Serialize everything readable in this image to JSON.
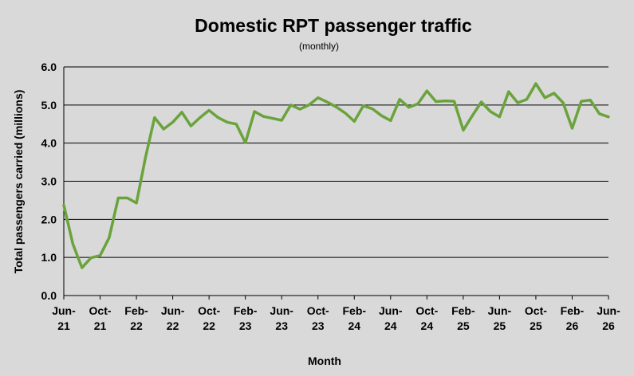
{
  "chart_data": {
    "type": "line",
    "title": "Domestic RPT passenger traffic",
    "subtitle": "(monthly)",
    "xlabel": "Month",
    "ylabel": "Total passengers carried (millions)",
    "ylim": [
      0,
      6
    ],
    "yticks": [
      "0.0",
      "1.0",
      "2.0",
      "3.0",
      "4.0",
      "5.0",
      "6.0"
    ],
    "xticks": [
      [
        "Jun-",
        "21"
      ],
      [
        "Oct-",
        "21"
      ],
      [
        "Feb-",
        "22"
      ],
      [
        "Jun-",
        "22"
      ],
      [
        "Oct-",
        "22"
      ],
      [
        "Feb-",
        "23"
      ],
      [
        "Jun-",
        "23"
      ],
      [
        "Oct-",
        "23"
      ],
      [
        "Feb-",
        "24"
      ],
      [
        "Jun-",
        "24"
      ],
      [
        "Oct-",
        "24"
      ],
      [
        "Feb-",
        "25"
      ],
      [
        "Jun-",
        "25"
      ],
      [
        "Oct-",
        "25"
      ],
      [
        "Feb-",
        "26"
      ],
      [
        "Jun-",
        "26"
      ]
    ],
    "grid": true,
    "line_color": "#6aa33c",
    "series": [
      {
        "x": [
          "Jun-21",
          "Jul-21",
          "Aug-21",
          "Sep-21",
          "Oct-21",
          "Nov-21",
          "Dec-21",
          "Jan-22",
          "Feb-22",
          "Mar-22",
          "Apr-22",
          "May-22",
          "Jun-22",
          "Jul-22",
          "Aug-22",
          "Sep-22",
          "Oct-22",
          "Nov-22",
          "Dec-22",
          "Jan-23",
          "Feb-23",
          "Mar-23",
          "Apr-23",
          "May-23",
          "Jun-23",
          "Jul-23",
          "Aug-23",
          "Sep-23",
          "Oct-23",
          "Nov-23",
          "Dec-23",
          "Jan-24",
          "Feb-24",
          "Mar-24",
          "Apr-24",
          "May-24",
          "Jun-24",
          "Jul-24",
          "Aug-24",
          "Sep-24",
          "Oct-24",
          "Nov-24",
          "Dec-24",
          "Jan-25",
          "Feb-25",
          "Mar-25",
          "Apr-25",
          "May-25",
          "Jun-25",
          "Jul-25",
          "Aug-25",
          "Sep-25",
          "Oct-25",
          "Nov-25",
          "Dec-25",
          "Jan-26",
          "Feb-26",
          "Mar-26",
          "Apr-26",
          "May-26",
          "Jun-26"
        ],
        "values": [
          2.37,
          1.35,
          0.73,
          0.99,
          1.05,
          1.52,
          2.56,
          2.56,
          2.43,
          3.62,
          4.67,
          4.37,
          4.55,
          4.81,
          4.45,
          4.67,
          4.86,
          4.67,
          4.55,
          4.5,
          4.01,
          4.83,
          4.7,
          4.65,
          4.6,
          5.0,
          4.89,
          5.0,
          5.19,
          5.08,
          4.95,
          4.79,
          4.57,
          4.98,
          4.9,
          4.72,
          4.59,
          5.15,
          4.94,
          5.03,
          5.37,
          5.09,
          5.11,
          5.1,
          4.34,
          4.72,
          5.08,
          4.83,
          4.69,
          5.35,
          5.06,
          5.15,
          5.56,
          5.19,
          5.31,
          5.06,
          4.39,
          5.1,
          5.13,
          4.77,
          4.69
        ]
      }
    ]
  }
}
